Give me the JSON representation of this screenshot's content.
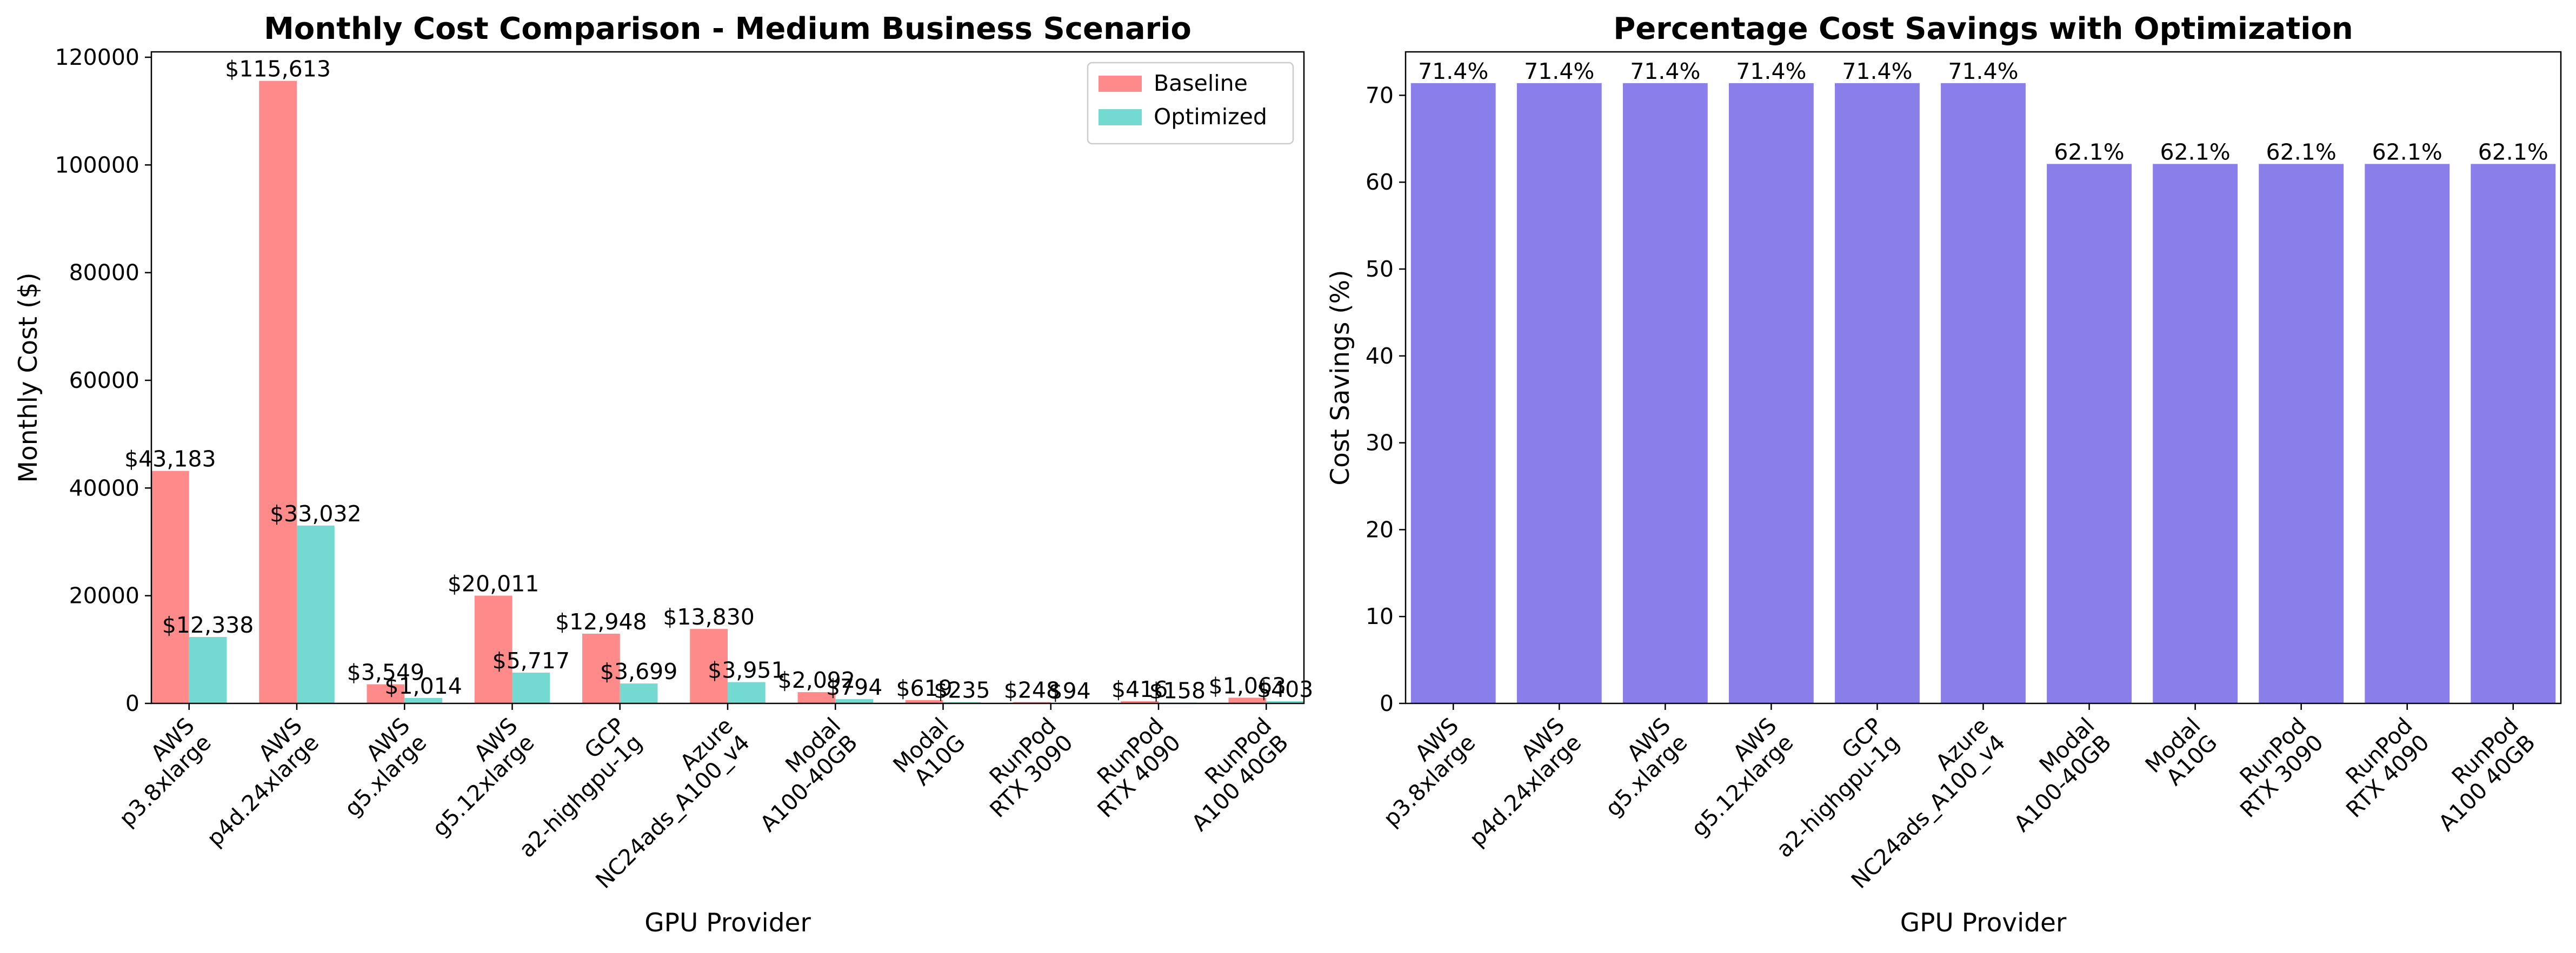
{
  "chart_data": [
    {
      "type": "bar",
      "title": "Monthly Cost Comparison - Medium Business Scenario",
      "xlabel": "GPU Provider",
      "ylabel": "Monthly Cost ($)",
      "ylim": [
        0,
        121000
      ],
      "yticks": [
        0,
        20000,
        40000,
        60000,
        80000,
        100000,
        120000
      ],
      "grid": false,
      "legend_position": "top-right",
      "categories": [
        "AWS\np3.8xlarge",
        "AWS\np4d.24xlarge",
        "AWS\ng5.xlarge",
        "AWS\ng5.12xlarge",
        "GCP\na2-highgpu-1g",
        "Azure\nNC24ads_A100_v4",
        "Modal\nA100-40GB",
        "Modal\nA10G",
        "RunPod\nRTX 3090",
        "RunPod\nRTX 4090",
        "RunPod\nA100 40GB"
      ],
      "series": [
        {
          "name": "Baseline",
          "color": "#ff8a8a",
          "values": [
            43183,
            115613,
            3549,
            20011,
            12948,
            13830,
            2092,
            619,
            248,
            416,
            1063
          ],
          "labels": [
            "$43,183",
            "$115,613",
            "$3,549",
            "$20,011",
            "$12,948",
            "$13,830",
            "$2,092",
            "$619",
            "$248",
            "$416",
            "$1,063"
          ]
        },
        {
          "name": "Optimized",
          "color": "#74d9d0",
          "values": [
            12338,
            33032,
            1014,
            5717,
            3699,
            3951,
            794,
            235,
            94,
            158,
            403
          ],
          "labels": [
            "$12,338",
            "$33,032",
            "$1,014",
            "$5,717",
            "$3,699",
            "$3,951",
            "$794",
            "$235",
            "$94",
            "$158",
            "$403"
          ]
        }
      ]
    },
    {
      "type": "bar",
      "title": "Percentage Cost Savings with Optimization",
      "xlabel": "GPU Provider",
      "ylabel": "Cost Savings (%)",
      "ylim": [
        0,
        75
      ],
      "yticks": [
        0,
        10,
        20,
        30,
        40,
        50,
        60,
        70
      ],
      "grid": false,
      "categories": [
        "AWS\np3.8xlarge",
        "AWS\np4d.24xlarge",
        "AWS\ng5.xlarge",
        "AWS\ng5.12xlarge",
        "GCP\na2-highgpu-1g",
        "Azure\nNC24ads_A100_v4",
        "Modal\nA100-40GB",
        "Modal\nA10G",
        "RunPod\nRTX 3090",
        "RunPod\nRTX 4090",
        "RunPod\nA100 40GB"
      ],
      "series": [
        {
          "color": "#8a7fea",
          "values": [
            71.4,
            71.4,
            71.4,
            71.4,
            71.4,
            71.4,
            62.1,
            62.1,
            62.1,
            62.1,
            62.1
          ],
          "labels": [
            "71.4%",
            "71.4%",
            "71.4%",
            "71.4%",
            "71.4%",
            "71.4%",
            "62.1%",
            "62.1%",
            "62.1%",
            "62.1%",
            "62.1%"
          ]
        }
      ]
    }
  ]
}
